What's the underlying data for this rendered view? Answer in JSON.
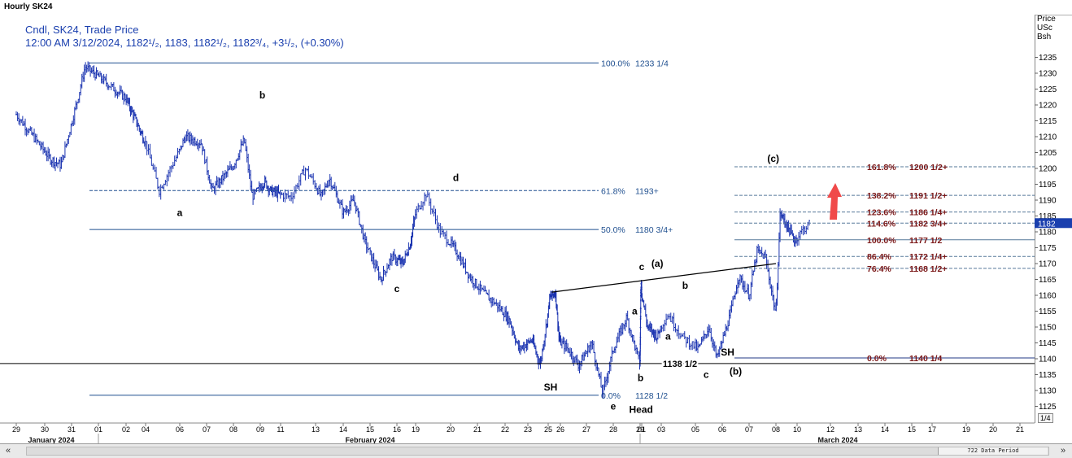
{
  "window": {
    "title": "Hourly SK24"
  },
  "legend": {
    "line1": "Cndl, SK24, Trade Price",
    "line2": "12:00 AM 3/12/2024, 1182¹/₂, 1183, 1182¹/₂, 1182³/₄, +3¹/₂, (+0.30%)"
  },
  "price_axis": {
    "title": [
      "Price",
      "USc",
      "Bsh"
    ],
    "current_price_label": "1182"
  },
  "page_indicator": "1/4",
  "scrollbar": {
    "label": "722 Data Period",
    "left_label": "«",
    "right_label": "»"
  },
  "colors": {
    "candles": "#1a33b0",
    "blue_fib": "#1f4f8f",
    "red_fib": "#7a1616",
    "arrow": "#f04a4a",
    "wave_text": "#000000"
  },
  "chart_data": {
    "type": "candlestick",
    "title": "Hourly SK24",
    "ylabel": "Price USc Bsh",
    "ylim": [
      1122,
      1240
    ],
    "y_ticks": [
      1125,
      1130,
      1135,
      1140,
      1145,
      1150,
      1155,
      1160,
      1165,
      1170,
      1175,
      1180,
      1185,
      1190,
      1195,
      1200,
      1205,
      1210,
      1215,
      1220,
      1225,
      1230,
      1235
    ],
    "x_ticks": [
      "29",
      "30",
      "31",
      "01",
      "02",
      "04",
      "06",
      "07",
      "08",
      "09",
      "11",
      "13",
      "14",
      "15",
      "16",
      "19",
      "20",
      "21",
      "22",
      "23",
      "25",
      "26",
      "27",
      "28",
      "29",
      "01",
      "03",
      "05",
      "06",
      "07",
      "08",
      "10",
      "12",
      "13",
      "14",
      "15",
      "17",
      "19",
      "20",
      "21"
    ],
    "month_labels": [
      "January 2024",
      "February 2024",
      "March 2024"
    ],
    "price_path": [
      [
        0,
        1217
      ],
      [
        1.2,
        1203
      ],
      [
        1.6,
        1201
      ],
      [
        2.2,
        1221
      ],
      [
        2.5,
        1232
      ],
      [
        3.0,
        1229
      ],
      [
        4.0,
        1222
      ],
      [
        5.0,
        1208
      ],
      [
        5.4,
        1193
      ],
      [
        6.2,
        1210
      ],
      [
        6.8,
        1208
      ],
      [
        7.2,
        1193
      ],
      [
        8.0,
        1201
      ],
      [
        8.4,
        1209
      ],
      [
        8.7,
        1191
      ],
      [
        9.2,
        1196
      ],
      [
        9.5,
        1193
      ],
      [
        10.3,
        1191
      ],
      [
        10.7,
        1200
      ],
      [
        11.2,
        1191
      ],
      [
        11.5,
        1197
      ],
      [
        12.0,
        1186
      ],
      [
        12.4,
        1190
      ],
      [
        12.8,
        1177
      ],
      [
        13.4,
        1165
      ],
      [
        13.8,
        1172
      ],
      [
        14.3,
        1170
      ],
      [
        14.7,
        1176
      ],
      [
        15.0,
        1186
      ],
      [
        15.3,
        1192
      ],
      [
        15.7,
        1180
      ],
      [
        16.2,
        1174
      ],
      [
        16.7,
        1166
      ],
      [
        17.3,
        1160
      ],
      [
        17.7,
        1157
      ],
      [
        18.2,
        1152
      ],
      [
        18.6,
        1143
      ],
      [
        19.2,
        1146
      ],
      [
        19.6,
        1138
      ],
      [
        20.1,
        1159
      ],
      [
        20.6,
        1161
      ],
      [
        20.9,
        1146
      ],
      [
        21.3,
        1143
      ],
      [
        21.7,
        1138
      ],
      [
        22.2,
        1145
      ],
      [
        22.6,
        1129
      ],
      [
        23.0,
        1143
      ],
      [
        23.5,
        1153
      ],
      [
        24.0,
        1138
      ],
      [
        24.4,
        1160
      ],
      [
        24.9,
        1164
      ],
      [
        25.3,
        1150
      ],
      [
        25.8,
        1147
      ],
      [
        26.2,
        1154
      ],
      [
        26.6,
        1147
      ],
      [
        27.1,
        1143
      ],
      [
        27.5,
        1150
      ],
      [
        27.8,
        1140
      ],
      [
        28.3,
        1154
      ],
      [
        28.6,
        1166
      ],
      [
        29.0,
        1160
      ],
      [
        29.3,
        1174
      ],
      [
        29.6,
        1172
      ],
      [
        30.0,
        1154
      ],
      [
        30.2,
        1186
      ],
      [
        30.6,
        1181
      ],
      [
        30.9,
        1177
      ],
      [
        31.2,
        1181
      ],
      [
        31.4,
        1182.75
      ]
    ],
    "series": [
      {
        "name": "Blue Fibonacci",
        "levels": [
          {
            "pct": "100.0%",
            "price": 1233.25,
            "label": "1233 1/4"
          },
          {
            "pct": "61.8%",
            "price": 1193,
            "label": "1193+"
          },
          {
            "pct": "50.0%",
            "price": 1180.75,
            "label": "1180 3/4+"
          },
          {
            "pct": "0.0%",
            "price": 1128.5,
            "label": "1128 1/2"
          }
        ]
      },
      {
        "name": "Red Fibonacci",
        "levels": [
          {
            "pct": "161.8%",
            "price": 1200.5,
            "label": "1200 1/2+"
          },
          {
            "pct": "138.2%",
            "price": 1191.5,
            "label": "1191 1/2+"
          },
          {
            "pct": "123.6%",
            "price": 1186.25,
            "label": "1186 1/4+"
          },
          {
            "pct": "114.6%",
            "price": 1182.75,
            "label": "1182 3/4+"
          },
          {
            "pct": "100.0%",
            "price": 1177.5,
            "label": "1177 1/2"
          },
          {
            "pct": "86.4%",
            "price": 1172.25,
            "label": "1172 1/4+"
          },
          {
            "pct": "76.4%",
            "price": 1168.5,
            "label": "1168 1/2+"
          },
          {
            "pct": "0.0%",
            "price": 1140.25,
            "label": "1140 1/4"
          }
        ]
      }
    ],
    "support_line": {
      "price": 1138.5,
      "label": "1138 1/2"
    },
    "neckline": {
      "from": [
        20.3,
        1161
      ],
      "to": [
        30.0,
        1170
      ]
    },
    "wave_labels": [
      {
        "text": "b",
        "x": 9.1,
        "price": 1222
      },
      {
        "text": "a",
        "x": 6.0,
        "price": 1185
      },
      {
        "text": "c",
        "x": 14.0,
        "price": 1161
      },
      {
        "text": "d",
        "x": 16.2,
        "price": 1196
      },
      {
        "text": "SH",
        "x": 20.2,
        "price": 1130
      },
      {
        "text": "e",
        "x": 23.0,
        "price": 1124
      },
      {
        "text": "Head",
        "x": 24.6,
        "price": 1123
      },
      {
        "text": "a",
        "x": 23.8,
        "price": 1154
      },
      {
        "text": "b",
        "x": 24.3,
        "price": 1133
      },
      {
        "text": "c",
        "x": 25.0,
        "price": 1168
      },
      {
        "text": "(a)",
        "x": 25.8,
        "price": 1169
      },
      {
        "text": "b",
        "x": 26.7,
        "price": 1162
      },
      {
        "text": "a",
        "x": 26.2,
        "price": 1146
      },
      {
        "text": "c",
        "x": 27.4,
        "price": 1134
      },
      {
        "text": "SH",
        "x": 28.2,
        "price": 1141
      },
      {
        "text": "(b)",
        "x": 28.5,
        "price": 1135
      },
      {
        "text": "(c)",
        "x": 29.9,
        "price": 1202
      }
    ]
  }
}
